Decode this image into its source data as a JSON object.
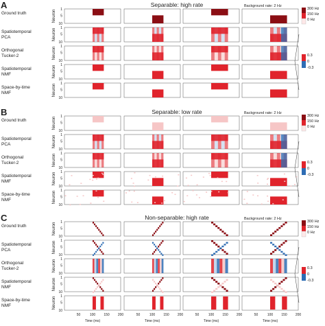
{
  "chart_data": {
    "type": "heatmap",
    "x_axis": {
      "label": "Time (ms)",
      "ticks": [
        50,
        100,
        150,
        200
      ],
      "range": [
        0,
        200
      ]
    },
    "y_axis": {
      "label": "Neuron",
      "ticks": [
        1,
        5,
        10
      ],
      "range": [
        1,
        10
      ]
    },
    "rows": [
      "Ground truth",
      "Spatiotemporal PCA",
      "Orthogonal Tucker-2",
      "Spatiotemporal NMF",
      "Space-by-time NMF"
    ],
    "colorbars": {
      "rate": {
        "ticks": [
          "300 Hz",
          "150 Hz",
          "0 Hz"
        ],
        "range": [
          0,
          300
        ]
      },
      "loading": {
        "ticks": [
          "0.3",
          "0",
          "-0.3"
        ],
        "range": [
          -0.3,
          0.3
        ]
      }
    },
    "background_rate": "Background rate: 2 Hz",
    "panels": [
      {
        "letter": "A",
        "title": "Separable: high rate",
        "scenario": "separable-high",
        "trials": [
          {
            "t0": 100,
            "t1": 140,
            "n0": 1,
            "n1": 5
          },
          {
            "t0": 100,
            "t1": 140,
            "n0": 5,
            "n1": 10
          },
          {
            "t0": 100,
            "t1": 160,
            "n0": 1,
            "n1": 5
          },
          {
            "t0": 100,
            "t1": 160,
            "n0": 5,
            "n1": 10
          }
        ]
      },
      {
        "letter": "B",
        "title": "Separable: low rate",
        "scenario": "separable-low",
        "trials": [
          {
            "t0": 100,
            "t1": 140,
            "n0": 1,
            "n1": 5
          },
          {
            "t0": 100,
            "t1": 140,
            "n0": 5,
            "n1": 10
          },
          {
            "t0": 100,
            "t1": 160,
            "n0": 1,
            "n1": 5
          },
          {
            "t0": 100,
            "t1": 160,
            "n0": 5,
            "n1": 10
          }
        ]
      },
      {
        "letter": "C",
        "title": "Non-separable: high rate",
        "scenario": "non-separable",
        "trials": [
          {
            "t0": 100,
            "t1": 140,
            "dir": "down"
          },
          {
            "t0": 100,
            "t1": 140,
            "dir": "up"
          },
          {
            "t0": 100,
            "t1": 160,
            "dir": "down"
          },
          {
            "t0": 100,
            "t1": 160,
            "dir": "up"
          }
        ]
      }
    ],
    "colors": {
      "high": "#8b0e14",
      "mid": "#e0242c",
      "low": "#f6c6c6",
      "blue": "#2e6db4",
      "lightblue": "#b9cfe9",
      "text": "#222222"
    }
  }
}
